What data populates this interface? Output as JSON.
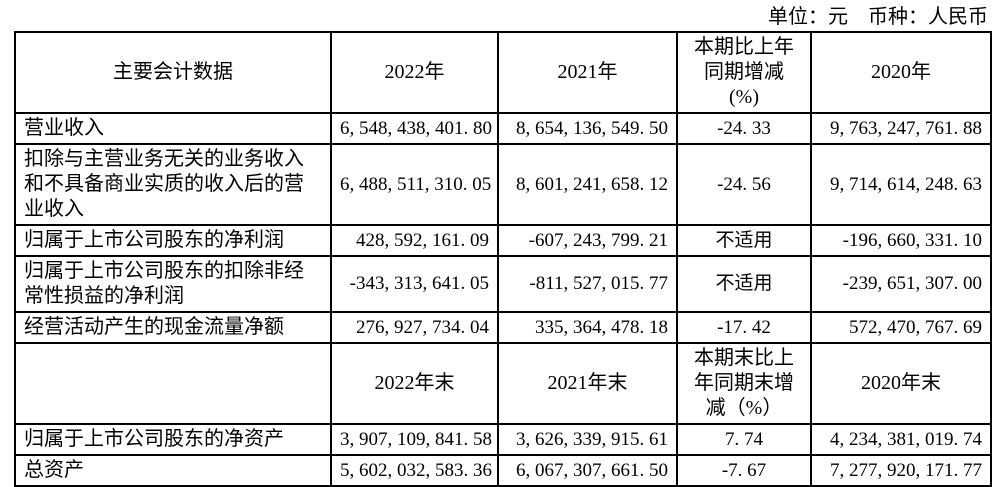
{
  "note": {
    "text": "单位：元　币种：人民币"
  },
  "table": {
    "header": {
      "label": "主要会计数据",
      "col_2022": "2022年",
      "col_2021": "2021年",
      "col_change": "本期比上年同期增减(%)",
      "col_2020": "2020年"
    },
    "subheader": {
      "label": "",
      "col_2022": "2022年末",
      "col_2021": "2021年末",
      "col_change": "本期末比上年同期末增减（%）",
      "col_2020": "2020年末"
    },
    "rows": [
      {
        "label": "营业收入",
        "v2022": "6, 548, 438, 401. 80",
        "v2021": "8, 654, 136, 549. 50",
        "change": "-24. 33",
        "v2020": "9, 763, 247, 761. 88"
      },
      {
        "label": "扣除与主营业务无关的业务收入和不具备商业实质的收入后的营业收入",
        "v2022": "6, 488, 511, 310. 05",
        "v2021": "8, 601, 241, 658. 12",
        "change": "-24. 56",
        "v2020": "9, 714, 614, 248. 63"
      },
      {
        "label": "归属于上市公司股东的净利润",
        "v2022": "428, 592, 161. 09",
        "v2021": "-607, 243, 799. 21",
        "change": "不适用",
        "v2020": "-196, 660, 331. 10"
      },
      {
        "label": "归属于上市公司股东的扣除非经常性损益的净利润",
        "v2022": "-343, 313, 641. 05",
        "v2021": "-811, 527, 015. 77",
        "change": "不适用",
        "v2020": "-239, 651, 307. 00"
      },
      {
        "label": "经营活动产生的现金流量净额",
        "v2022": "276, 927, 734. 04",
        "v2021": "335, 364, 478. 18",
        "change": "-17. 42",
        "v2020": "572, 470, 767. 69"
      },
      {
        "label": "归属于上市公司股东的净资产",
        "v2022": "3, 907, 109, 841. 58",
        "v2021": "3, 626, 339, 915. 61",
        "change": "7. 74",
        "v2020": "4, 234, 381, 019. 74"
      },
      {
        "label": "总资产",
        "v2022": "5, 602, 032, 583. 36",
        "v2021": "6, 067, 307, 661. 50",
        "change": "-7. 67",
        "v2020": "7, 277, 920, 171. 77"
      }
    ]
  }
}
